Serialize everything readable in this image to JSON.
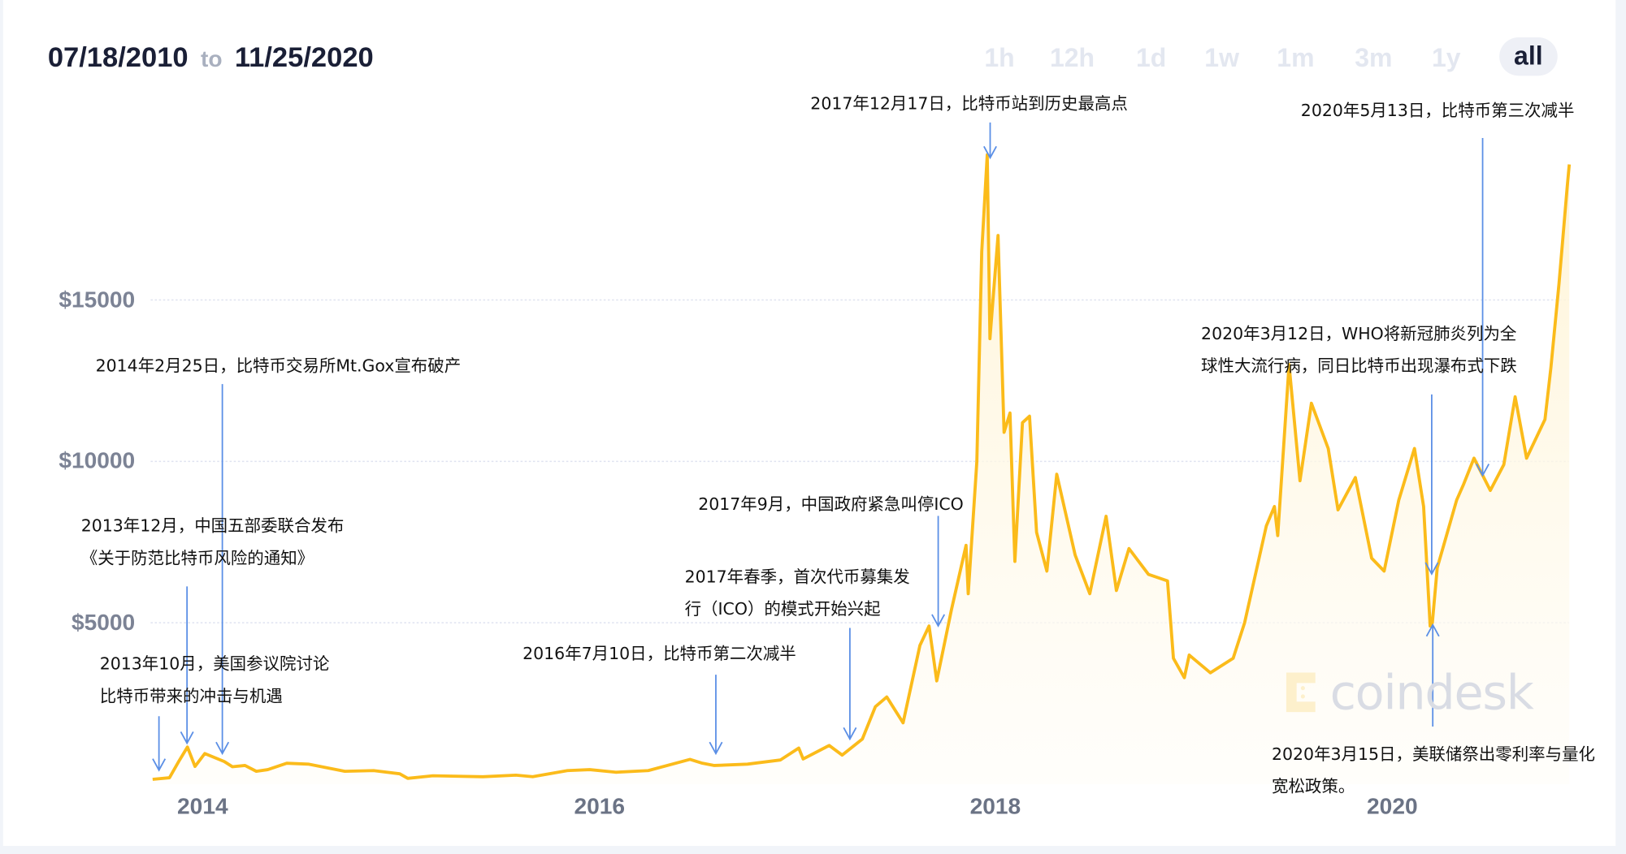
{
  "header": {
    "from_date": "07/18/2010",
    "to_word": "to",
    "to_date": "11/25/2020"
  },
  "tabs": [
    {
      "label": "1h"
    },
    {
      "label": "12h"
    },
    {
      "label": "1d"
    },
    {
      "label": "1w"
    },
    {
      "label": "1m"
    },
    {
      "label": "3m"
    },
    {
      "label": "1y"
    },
    {
      "label": "all",
      "active": true
    }
  ],
  "watermark": "coindesk",
  "colors": {
    "line": "#fbbb1a",
    "fill": "#fff6dc",
    "arrow": "#5b8fe6",
    "grid": "#dfe3f0"
  },
  "annotations": [
    {
      "lines": [
        "2013年10月，美国参议院讨论",
        "比特币带来的冲击与机遇"
      ],
      "date": "2013-10-01"
    },
    {
      "lines": [
        "2013年12月，中国五部委联合发布",
        "《关于防范比特币风险的通知》"
      ],
      "date": "2013-12-05"
    },
    {
      "lines": [
        "2014年2月25日，比特币交易所Mt.Gox宣布破产"
      ],
      "date": "2014-02-25"
    },
    {
      "lines": [
        "2016年7月10日，比特币第二次减半"
      ],
      "date": "2016-07-10"
    },
    {
      "lines": [
        "2017年春季，首次代币募集发",
        "行（ICO）的模式开始兴起"
      ],
      "date": "2017-04-01"
    },
    {
      "lines": [
        "2017年9月，中国政府紧急叫停ICO"
      ],
      "date": "2017-09-04"
    },
    {
      "lines": [
        "2017年12月17日，比特币站到历史最高点"
      ],
      "date": "2017-12-17"
    },
    {
      "lines": [
        "2020年5月13日，比特币第三次减半"
      ],
      "date": "2020-05-13"
    },
    {
      "lines": [
        "2020年3月12日，WHO将新冠肺炎列为全",
        "球性大流行病，同日比特币出现瀑布式下跌"
      ],
      "date": "2020-03-12"
    },
    {
      "lines": [
        "2020年3月15日，美联储祭出零利率与量化",
        "宽松政策。"
      ],
      "date": "2020-03-15"
    }
  ],
  "chart_data": {
    "type": "area",
    "xlabel": "",
    "ylabel": "",
    "x_ticks": [
      "2014",
      "2016",
      "2018",
      "2020"
    ],
    "y_ticks": [
      "$5000",
      "$10000",
      "$15000"
    ],
    "y_tick_values": [
      5000,
      10000,
      15000
    ],
    "ylim": [
      0,
      20000
    ],
    "xlim": [
      "2013-10-01",
      "2020-11-25"
    ],
    "grid": true,
    "points": [
      [
        "2013-10-01",
        150
      ],
      [
        "2013-11-01",
        200
      ],
      [
        "2013-11-18",
        700
      ],
      [
        "2013-12-04",
        1150
      ],
      [
        "2013-12-18",
        550
      ],
      [
        "2014-01-05",
        950
      ],
      [
        "2014-02-10",
        700
      ],
      [
        "2014-02-25",
        540
      ],
      [
        "2014-03-20",
        580
      ],
      [
        "2014-04-10",
        400
      ],
      [
        "2014-05-01",
        450
      ],
      [
        "2014-06-05",
        650
      ],
      [
        "2014-07-15",
        620
      ],
      [
        "2014-09-20",
        400
      ],
      [
        "2014-11-12",
        420
      ],
      [
        "2014-12-30",
        320
      ],
      [
        "2015-01-14",
        180
      ],
      [
        "2015-03-01",
        260
      ],
      [
        "2015-06-01",
        230
      ],
      [
        "2015-08-01",
        280
      ],
      [
        "2015-09-01",
        230
      ],
      [
        "2015-11-04",
        420
      ],
      [
        "2015-12-15",
        450
      ],
      [
        "2016-02-01",
        370
      ],
      [
        "2016-04-01",
        420
      ],
      [
        "2016-06-17",
        770
      ],
      [
        "2016-07-10",
        650
      ],
      [
        "2016-08-01",
        580
      ],
      [
        "2016-10-01",
        620
      ],
      [
        "2016-12-01",
        750
      ],
      [
        "2017-01-04",
        1120
      ],
      [
        "2017-01-12",
        780
      ],
      [
        "2017-03-01",
        1200
      ],
      [
        "2017-03-25",
        900
      ],
      [
        "2017-05-01",
        1400
      ],
      [
        "2017-05-25",
        2400
      ],
      [
        "2017-06-15",
        2700
      ],
      [
        "2017-07-15",
        1900
      ],
      [
        "2017-08-15",
        4300
      ],
      [
        "2017-09-01",
        4900
      ],
      [
        "2017-09-15",
        3200
      ],
      [
        "2017-10-12",
        5400
      ],
      [
        "2017-11-08",
        7400
      ],
      [
        "2017-11-12",
        5900
      ],
      [
        "2017-11-28",
        10000
      ],
      [
        "2017-12-07",
        16500
      ],
      [
        "2017-12-17",
        19500
      ],
      [
        "2017-12-22",
        13800
      ],
      [
        "2018-01-06",
        17000
      ],
      [
        "2018-01-17",
        10900
      ],
      [
        "2018-01-28",
        11500
      ],
      [
        "2018-02-06",
        6900
      ],
      [
        "2018-02-20",
        11200
      ],
      [
        "2018-03-05",
        11400
      ],
      [
        "2018-03-18",
        7800
      ],
      [
        "2018-04-06",
        6600
      ],
      [
        "2018-04-24",
        9600
      ],
      [
        "2018-05-28",
        7100
      ],
      [
        "2018-06-24",
        5900
      ],
      [
        "2018-07-24",
        8300
      ],
      [
        "2018-08-12",
        6000
      ],
      [
        "2018-09-04",
        7300
      ],
      [
        "2018-10-10",
        6500
      ],
      [
        "2018-11-14",
        6300
      ],
      [
        "2018-11-25",
        3900
      ],
      [
        "2018-12-15",
        3300
      ],
      [
        "2018-12-24",
        4000
      ],
      [
        "2019-02-01",
        3450
      ],
      [
        "2019-03-15",
        3900
      ],
      [
        "2019-04-05",
        5000
      ],
      [
        "2019-05-15",
        8000
      ],
      [
        "2019-05-30",
        8600
      ],
      [
        "2019-06-05",
        7700
      ],
      [
        "2019-06-26",
        13000
      ],
      [
        "2019-07-16",
        9400
      ],
      [
        "2019-08-06",
        11800
      ],
      [
        "2019-09-06",
        10400
      ],
      [
        "2019-09-24",
        8500
      ],
      [
        "2019-10-26",
        9500
      ],
      [
        "2019-11-25",
        7000
      ],
      [
        "2019-12-18",
        6600
      ],
      [
        "2020-01-14",
        8800
      ],
      [
        "2020-02-12",
        10400
      ],
      [
        "2020-02-29",
        8600
      ],
      [
        "2020-03-12",
        4900
      ],
      [
        "2020-03-16",
        5000
      ],
      [
        "2020-03-25",
        6700
      ],
      [
        "2020-04-30",
        8800
      ],
      [
        "2020-05-13",
        9300
      ],
      [
        "2020-06-01",
        10100
      ],
      [
        "2020-07-01",
        9100
      ],
      [
        "2020-07-26",
        9900
      ],
      [
        "2020-08-16",
        12000
      ],
      [
        "2020-09-06",
        10100
      ],
      [
        "2020-10-10",
        11300
      ],
      [
        "2020-10-21",
        12900
      ],
      [
        "2020-11-05",
        15500
      ],
      [
        "2020-11-20",
        18500
      ],
      [
        "2020-11-24",
        19200
      ]
    ]
  }
}
